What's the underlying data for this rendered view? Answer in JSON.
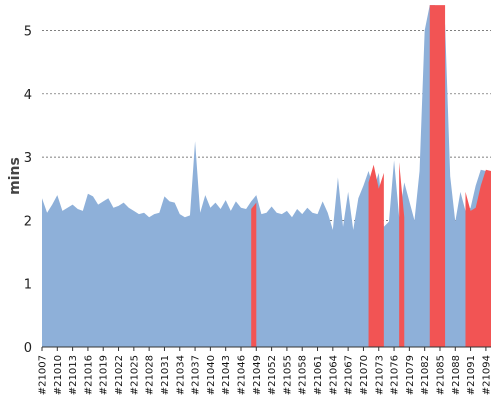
{
  "chart_data": {
    "type": "area",
    "ylabel": "mins",
    "xlabel": "",
    "title": "",
    "ylim": [
      0,
      5.4
    ],
    "yticks": [
      0,
      1,
      2,
      3,
      4,
      5
    ],
    "grid": true,
    "x_start": 21007,
    "x_end": 21095,
    "xtick_labels": [
      "#21007",
      "#21010",
      "#21013",
      "#21016",
      "#21019",
      "#21022",
      "#21025",
      "#21028",
      "#21031",
      "#21034",
      "#21037",
      "#21040",
      "#21043",
      "#21046",
      "#21049",
      "#21052",
      "#21055",
      "#21058",
      "#21061",
      "#21064",
      "#21067",
      "#21070",
      "#21073",
      "#21076",
      "#21079",
      "#21082",
      "#21085",
      "#21088",
      "#21091",
      "#21094"
    ],
    "series": [
      {
        "color": "#8eb0d9",
        "values": [
          2.35,
          2.12,
          2.25,
          2.4,
          2.15,
          2.2,
          2.25,
          2.18,
          2.15,
          2.42,
          2.38,
          2.25,
          2.3,
          2.35,
          2.2,
          2.23,
          2.28,
          2.2,
          2.15,
          2.1,
          2.12,
          2.05,
          2.1,
          2.12,
          2.38,
          2.3,
          2.28,
          2.1,
          2.05,
          2.08,
          3.25,
          2.12,
          2.4,
          2.2,
          2.28,
          2.18,
          2.32,
          2.15,
          2.3,
          2.2,
          2.18,
          2.3,
          2.4,
          2.1,
          2.12,
          2.22,
          2.12,
          2.1,
          2.15,
          2.05,
          2.18,
          2.1,
          2.2,
          2.12,
          2.1,
          2.3,
          2.12,
          1.85,
          2.68,
          1.9,
          2.45,
          1.85,
          2.35,
          2.55,
          2.78,
          2.5,
          2.75,
          1.9,
          1.98,
          2.95,
          2.05,
          2.6,
          2.3,
          2.0,
          2.78,
          5.0,
          5.4,
          5.4,
          4.2,
          5.1,
          2.7,
          1.98,
          2.45,
          2.15,
          2.2,
          2.55,
          2.8,
          2.78,
          1.9
        ]
      },
      {
        "color": "#f25454",
        "values": [
          0,
          0,
          0,
          0,
          0,
          0,
          0,
          0,
          0,
          0,
          0,
          0,
          0,
          0,
          0,
          0,
          0,
          0,
          0,
          0,
          0,
          0,
          0,
          0,
          0,
          0,
          0,
          0,
          0,
          0,
          0,
          0,
          0,
          0,
          0,
          0,
          0,
          0,
          0,
          0,
          0,
          2.18,
          2.28,
          0,
          0,
          0,
          0,
          0,
          0,
          0,
          0,
          0,
          0,
          0,
          0,
          0,
          0,
          0,
          0,
          0,
          0,
          0,
          0,
          0,
          2.6,
          2.88,
          2.5,
          2.75,
          0,
          0,
          2.92,
          2.05,
          0,
          0,
          0,
          0,
          5.4,
          5.4,
          5.4,
          5.4,
          0,
          0,
          0,
          2.45,
          2.15,
          2.2,
          2.55,
          2.8,
          2.78,
          0
        ]
      }
    ]
  }
}
